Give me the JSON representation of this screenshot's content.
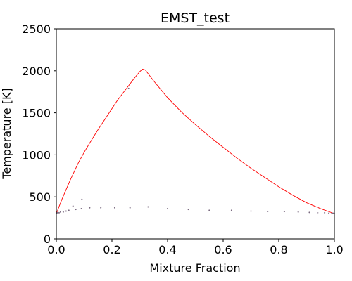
{
  "chart_data": {
    "type": "line",
    "title": "EMST_test",
    "xlabel": "Mixture Fraction",
    "ylabel": "Temperature [K]",
    "xlim": [
      0.0,
      1.0
    ],
    "ylim": [
      0,
      2500
    ],
    "xticks": [
      0.0,
      0.2,
      0.4,
      0.6,
      0.8,
      1.0
    ],
    "xtick_labels": [
      "0.0",
      "0.2",
      "0.4",
      "0.6",
      "0.8",
      "1.0"
    ],
    "yticks": [
      0,
      500,
      1000,
      1500,
      2000,
      2500
    ],
    "ytick_labels": [
      "0",
      "500",
      "1000",
      "1500",
      "2000",
      "2500"
    ],
    "grid": false,
    "series": [
      {
        "kind": "line",
        "color": "#ff0000",
        "x": [
          0.0,
          0.02,
          0.05,
          0.08,
          0.1,
          0.12,
          0.15,
          0.18,
          0.2,
          0.22,
          0.25,
          0.28,
          0.3,
          0.31,
          0.32,
          0.35,
          0.4,
          0.45,
          0.5,
          0.55,
          0.6,
          0.65,
          0.7,
          0.75,
          0.8,
          0.85,
          0.9,
          0.95,
          1.0
        ],
        "y": [
          300,
          470,
          700,
          910,
          1030,
          1140,
          1300,
          1450,
          1550,
          1650,
          1780,
          1910,
          1990,
          2020,
          2010,
          1880,
          1680,
          1510,
          1360,
          1220,
          1090,
          960,
          840,
          730,
          620,
          520,
          430,
          360,
          300
        ]
      },
      {
        "kind": "scatter",
        "color": "#7a6a80",
        "x": [
          0.0,
          0.003,
          0.006,
          0.01,
          0.015,
          0.025,
          0.035,
          0.045,
          0.06,
          0.07,
          0.09,
          0.092,
          0.12,
          0.16,
          0.21,
          0.26,
          0.265,
          0.33,
          0.4,
          0.475,
          0.55,
          0.63,
          0.7,
          0.76,
          0.82,
          0.87,
          0.91,
          0.94,
          0.965,
          0.98,
          0.99,
          0.995,
          1.0
        ],
        "y": [
          300,
          310,
          330,
          310,
          320,
          320,
          330,
          340,
          390,
          350,
          360,
          470,
          370,
          370,
          370,
          1790,
          370,
          380,
          360,
          350,
          340,
          340,
          330,
          325,
          325,
          320,
          315,
          310,
          310,
          305,
          300,
          305,
          300
        ]
      }
    ]
  }
}
